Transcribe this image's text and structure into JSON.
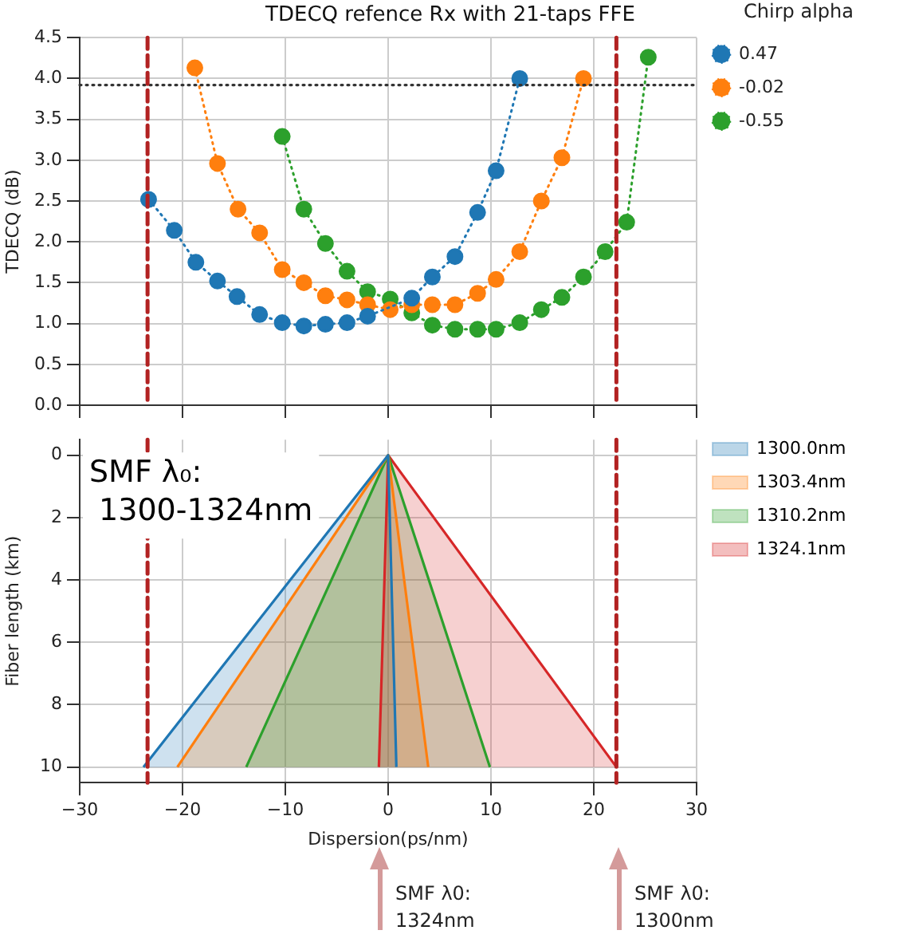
{
  "chart_data": [
    {
      "type": "line",
      "title": "TDECQ refence Rx with 21-taps FFE",
      "ylabel": "TDECQ (dB)",
      "legend_title": "Chirp alpha",
      "legend": "top right",
      "grid": true,
      "tick_labels": "y",
      "marker": "circle",
      "line_style": "dotted",
      "xlim": [
        -30,
        30
      ],
      "xticks": [
        -30,
        -20,
        -10,
        0,
        10,
        20,
        30
      ],
      "ylim": [
        0,
        4.5
      ],
      "yticks": [
        {
          "value": 0,
          "label": "0.0"
        },
        0.5,
        {
          "value": 1,
          "label": "1.0"
        },
        1.5,
        {
          "value": 2,
          "label": "2.0"
        },
        2.5,
        {
          "value": 3,
          "label": "3.0"
        },
        3.5,
        {
          "value": 4,
          "label": "4.0"
        },
        4.5
      ],
      "series": [
        {
          "name": "0.47",
          "color": "#1f77b4",
          "x": [
            -23.3,
            -20.8,
            -18.7,
            -16.6,
            -14.7,
            -12.5,
            -10.3,
            -8.2,
            -6.1,
            -4.0,
            -2.0,
            2.3,
            4.3,
            6.5,
            8.7,
            10.5,
            12.8
          ],
          "values": [
            2.52,
            2.14,
            1.75,
            1.52,
            1.33,
            1.11,
            1.01,
            0.97,
            0.99,
            1.01,
            1.09,
            1.31,
            1.57,
            1.82,
            2.36,
            2.87,
            4.0
          ]
        },
        {
          "name": "-0.02",
          "color": "#ff7f0e",
          "x": [
            -18.8,
            -16.6,
            -14.6,
            -12.5,
            -10.3,
            -8.2,
            -6.1,
            -4.0,
            -2.0,
            0.2,
            2.3,
            4.3,
            6.5,
            8.7,
            10.5,
            12.8,
            14.9,
            16.9,
            19.0
          ],
          "values": [
            4.13,
            2.96,
            2.4,
            2.11,
            1.66,
            1.5,
            1.34,
            1.29,
            1.23,
            1.17,
            1.23,
            1.23,
            1.23,
            1.37,
            1.54,
            1.88,
            2.5,
            3.03,
            4.0
          ]
        },
        {
          "name": "-0.55",
          "color": "#2ca02c",
          "x": [
            -10.3,
            -8.2,
            -6.1,
            -4.0,
            -2.0,
            0.2,
            2.3,
            4.3,
            6.5,
            8.7,
            10.5,
            12.8,
            14.9,
            16.9,
            19.0,
            21.1,
            23.2,
            25.3
          ],
          "values": [
            3.29,
            2.4,
            1.98,
            1.64,
            1.39,
            1.3,
            1.13,
            0.98,
            0.93,
            0.93,
            0.93,
            1.01,
            1.17,
            1.32,
            1.57,
            1.88,
            2.24,
            4.26
          ]
        }
      ],
      "ref_lines": [
        {
          "axis": "y",
          "value": 3.92,
          "color": "#333333",
          "line_style": "dotted"
        },
        {
          "axis": "x",
          "value": -23.4,
          "color": "#b22222",
          "line_style": "dashed"
        },
        {
          "axis": "x",
          "value": 22.2,
          "color": "#b22222",
          "line_style": "dashed"
        }
      ]
    },
    {
      "type": "area",
      "xlabel": "Dispersion(ps/nm)",
      "ylabel": "Fiber length (km)",
      "legend": "top right",
      "grid": true,
      "xlim": [
        -30,
        30
      ],
      "xticks": [
        {
          "value": -30,
          "label": "−30"
        },
        {
          "value": -20,
          "label": "−20"
        },
        {
          "value": -10,
          "label": "−10"
        },
        0,
        10,
        20,
        30
      ],
      "ylim": [
        10.5,
        -0.5
      ],
      "yticks": [
        0,
        2,
        4,
        6,
        8,
        10
      ],
      "series": [
        {
          "name": "1300.0nm",
          "color": "#1f77b4",
          "x": [
            -23.8,
            0,
            0.8
          ],
          "values": [
            10,
            0,
            10
          ]
        },
        {
          "name": "1303.4nm",
          "color": "#ff7f0e",
          "x": [
            -20.5,
            0,
            3.9
          ],
          "values": [
            10,
            0,
            10
          ]
        },
        {
          "name": "1310.2nm",
          "color": "#2ca02c",
          "x": [
            -13.8,
            0,
            9.9
          ],
          "values": [
            10,
            0,
            10
          ]
        },
        {
          "name": "1324.1nm",
          "color": "#d62728",
          "x": [
            -0.9,
            0,
            22.2
          ],
          "values": [
            10,
            0,
            10
          ]
        }
      ],
      "ref_lines": [
        {
          "axis": "x",
          "value": -23.4,
          "color": "#b22222",
          "line_style": "dashed"
        },
        {
          "axis": "x",
          "value": 22.2,
          "color": "#b22222",
          "line_style": "dashed"
        }
      ],
      "annotations": [
        "SMF λ₀:\n 1300-1324nm",
        "SMF λ0:\n1324nm",
        "SMF λ0:\n1300nm"
      ]
    }
  ]
}
